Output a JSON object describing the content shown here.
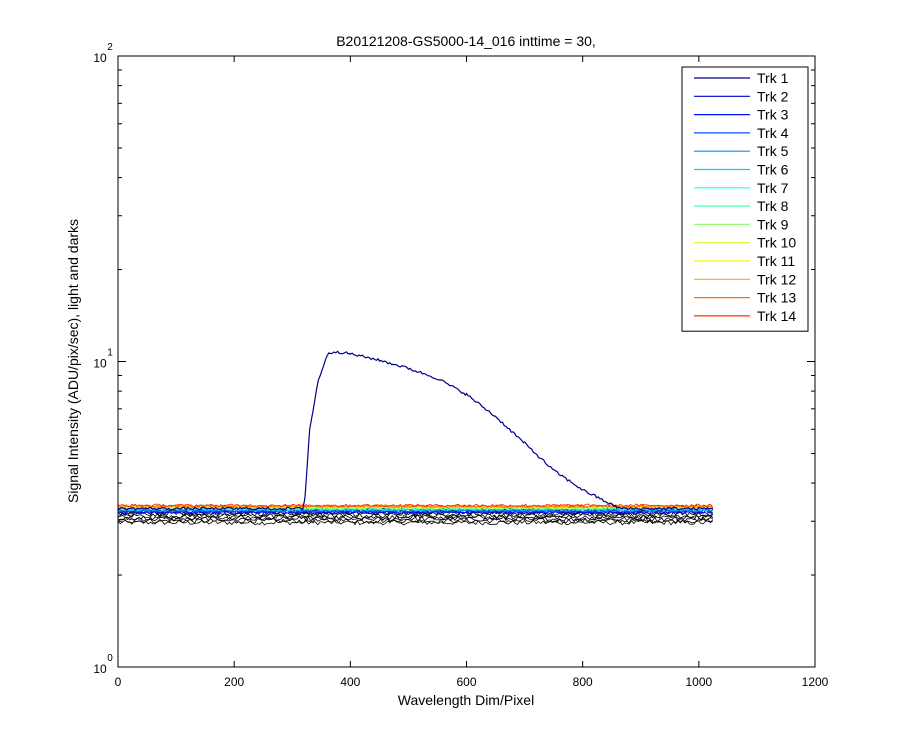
{
  "chart_data": {
    "type": "line",
    "title": "B20121208-GS5000-14_016 inttime = 30,",
    "xlabel": "Wavelength Dim/Pixel",
    "ylabel": "Signal Intensity (ADU/pix/sec), light and darks",
    "xlim": [
      0,
      1200
    ],
    "ylim": [
      1,
      100
    ],
    "yscale": "log",
    "x_ticks": [
      0,
      200,
      400,
      600,
      800,
      1000,
      1200
    ],
    "x_tick_labels": [
      "0",
      "200",
      "400",
      "600",
      "800",
      "1000",
      "1200"
    ],
    "y_ticks": [
      {
        "value": 1,
        "base": "10",
        "exponent": "0"
      },
      {
        "value": 10,
        "base": "10",
        "exponent": "1"
      },
      {
        "value": 100,
        "base": "10",
        "exponent": "2"
      }
    ],
    "grid": false,
    "legend_position": "top-right",
    "series": [
      {
        "name": "Trk 1",
        "color": "#00008f",
        "points": [
          [
            0,
            3.3
          ],
          [
            318,
            3.3
          ],
          [
            322,
            3.6
          ],
          [
            330,
            6.0
          ],
          [
            345,
            8.7
          ],
          [
            360,
            10.5
          ],
          [
            372,
            10.8
          ],
          [
            400,
            10.6
          ],
          [
            450,
            10.1
          ],
          [
            500,
            9.5
          ],
          [
            550,
            8.8
          ],
          [
            600,
            7.8
          ],
          [
            650,
            6.6
          ],
          [
            700,
            5.4
          ],
          [
            750,
            4.4
          ],
          [
            800,
            3.8
          ],
          [
            850,
            3.4
          ],
          [
            865,
            3.3
          ],
          [
            1024,
            3.3
          ]
        ]
      },
      {
        "name": "Trk 2",
        "color": "#0000cf",
        "points": [
          [
            0,
            3.2
          ],
          [
            1024,
            3.2
          ]
        ]
      },
      {
        "name": "Trk 3",
        "color": "#0010ff",
        "points": [
          [
            0,
            3.22
          ],
          [
            1024,
            3.22
          ]
        ]
      },
      {
        "name": "Trk 4",
        "color": "#0050ff",
        "points": [
          [
            0,
            3.24
          ],
          [
            1024,
            3.24
          ]
        ]
      },
      {
        "name": "Trk 5",
        "color": "#0090ff",
        "points": [
          [
            0,
            3.26
          ],
          [
            1024,
            3.26
          ]
        ]
      },
      {
        "name": "Trk 6",
        "color": "#00d0ff",
        "points": [
          [
            0,
            3.28
          ],
          [
            1024,
            3.28
          ]
        ]
      },
      {
        "name": "Trk 7",
        "color": "#10ffef",
        "points": [
          [
            0,
            3.3
          ],
          [
            1024,
            3.3
          ]
        ]
      },
      {
        "name": "Trk 8",
        "color": "#50ffaf",
        "points": [
          [
            0,
            3.31
          ],
          [
            1024,
            3.31
          ]
        ]
      },
      {
        "name": "Trk 9",
        "color": "#90ff6f",
        "points": [
          [
            0,
            3.32
          ],
          [
            1024,
            3.32
          ]
        ]
      },
      {
        "name": "Trk 10",
        "color": "#cfff30",
        "points": [
          [
            0,
            3.33
          ],
          [
            1024,
            3.33
          ]
        ]
      },
      {
        "name": "Trk 11",
        "color": "#ffef00",
        "points": [
          [
            0,
            3.34
          ],
          [
            1024,
            3.34
          ]
        ]
      },
      {
        "name": "Trk 12",
        "color": "#ffaf00",
        "points": [
          [
            0,
            3.35
          ],
          [
            1024,
            3.35
          ]
        ]
      },
      {
        "name": "Trk 13",
        "color": "#ff7000",
        "points": [
          [
            0,
            3.36
          ],
          [
            1024,
            3.36
          ]
        ]
      },
      {
        "name": "Trk 14",
        "color": "#ff3000",
        "points": [
          [
            0,
            3.38
          ],
          [
            1024,
            3.38
          ]
        ]
      }
    ],
    "dark_traces": {
      "color": "#000000",
      "x_range": [
        0,
        1024
      ],
      "y_range": [
        2.95,
        3.35
      ]
    }
  }
}
